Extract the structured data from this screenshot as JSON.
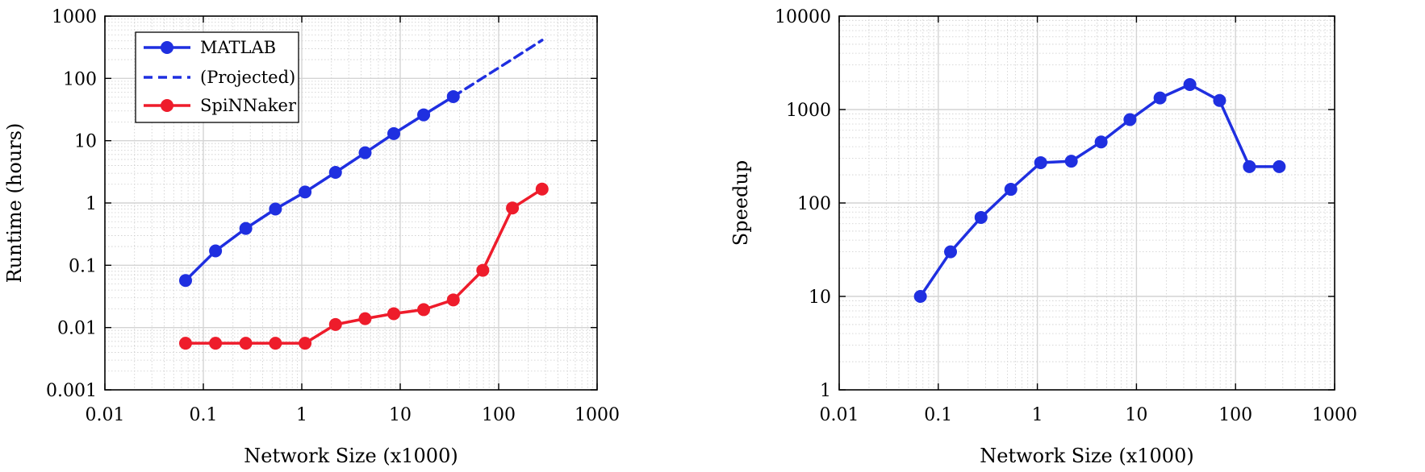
{
  "chart_data": [
    {
      "type": "line",
      "xlabel": "Network Size (x1000)",
      "ylabel": "Runtime (hours)",
      "x_scale": "log",
      "y_scale": "log",
      "xlim": [
        0.01,
        1000
      ],
      "ylim": [
        0.001,
        1000
      ],
      "x_ticks": [
        0.01,
        0.1,
        1,
        10,
        100,
        1000
      ],
      "x_tick_labels": [
        "0.01",
        "0.1",
        "1",
        "10",
        "100",
        "1000"
      ],
      "y_ticks": [
        0.001,
        0.01,
        0.1,
        1,
        10,
        100,
        1000
      ],
      "y_tick_labels": [
        "0.001",
        "0.01",
        "0.1",
        "1",
        "10",
        "100",
        "1000"
      ],
      "grid": true,
      "legend_position": "top-left",
      "series": [
        {
          "name": "MATLAB",
          "color": "#1f2fe0",
          "style": "solid",
          "markers": true,
          "x": [
            0.066,
            0.133,
            0.27,
            0.54,
            1.08,
            2.2,
            4.4,
            8.6,
            17.3,
            34.6
          ],
          "y": [
            0.057,
            0.17,
            0.39,
            0.8,
            1.5,
            3.1,
            6.4,
            13,
            26,
            51
          ]
        },
        {
          "name": "(Projected)",
          "color": "#1f2fe0",
          "style": "dashed",
          "markers": false,
          "x": [
            34.6,
            69,
            138,
            276
          ],
          "y": [
            51,
            102,
            204,
            410
          ]
        },
        {
          "name": "SpiNNaker",
          "color": "#ee1c2b",
          "style": "solid",
          "markers": true,
          "x": [
            0.066,
            0.133,
            0.27,
            0.54,
            1.08,
            2.2,
            4.4,
            8.6,
            17.3,
            34.6,
            69,
            138,
            276
          ],
          "y": [
            0.0056,
            0.0056,
            0.0056,
            0.0056,
            0.0056,
            0.0112,
            0.0139,
            0.0167,
            0.0194,
            0.0278,
            0.083,
            0.83,
            1.67
          ]
        }
      ]
    },
    {
      "type": "line",
      "xlabel": "Network Size (x1000)",
      "ylabel": "Speedup",
      "x_scale": "log",
      "y_scale": "log",
      "xlim": [
        0.01,
        1000
      ],
      "ylim": [
        1,
        10000
      ],
      "x_ticks": [
        0.01,
        0.1,
        1,
        10,
        100,
        1000
      ],
      "x_tick_labels": [
        "0.01",
        "0.1",
        "1",
        "10",
        "100",
        "1000"
      ],
      "y_ticks": [
        1,
        10,
        100,
        1000,
        10000
      ],
      "y_tick_labels": [
        "1",
        "10",
        "100",
        "1000",
        "10000"
      ],
      "grid": true,
      "series": [
        {
          "color": "#1f2fe0",
          "style": "solid",
          "markers": true,
          "x": [
            0.066,
            0.133,
            0.27,
            0.54,
            1.08,
            2.2,
            4.4,
            8.6,
            17.3,
            34.6,
            69,
            138,
            276
          ],
          "y": [
            10,
            30,
            70,
            140,
            270,
            280,
            450,
            780,
            1330,
            1850,
            1250,
            245,
            245
          ]
        }
      ]
    }
  ]
}
